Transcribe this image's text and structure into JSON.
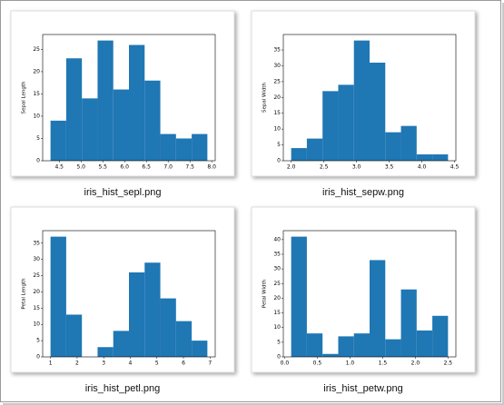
{
  "captions": [
    "iris_hist_sepl.png",
    "iris_hist_sepw.png",
    "iris_hist_petl.png",
    "iris_hist_petw.png"
  ],
  "chart_data": [
    {
      "type": "histogram",
      "ylabel": "Sepal Length",
      "color": "#1f77b4",
      "bins": [
        4.3,
        4.66,
        5.02,
        5.38,
        5.74,
        6.1,
        6.46,
        6.82,
        7.18,
        7.54,
        7.9
      ],
      "values": [
        9,
        23,
        14,
        27,
        16,
        26,
        18,
        6,
        5,
        6
      ],
      "xlim": [
        4.12,
        8.08
      ],
      "ylim": [
        0,
        28.35
      ],
      "xticks": [
        4.5,
        {
          "value": 5,
          "label": "5.0"
        },
        5.5,
        {
          "value": 6,
          "label": "6.0"
        },
        6.5,
        {
          "value": 7,
          "label": "7.0"
        },
        7.5,
        {
          "value": 8,
          "label": "8.0"
        }
      ],
      "yticks": [
        0,
        5,
        10,
        15,
        20,
        25
      ]
    },
    {
      "type": "histogram",
      "ylabel": "Sepal Width",
      "color": "#1f77b4",
      "bins": [
        2.0,
        2.24,
        2.48,
        2.72,
        2.96,
        3.2,
        3.44,
        3.68,
        3.92,
        4.16,
        4.4
      ],
      "values": [
        4,
        7,
        22,
        24,
        38,
        31,
        9,
        11,
        2,
        2
      ],
      "xlim": [
        1.88,
        4.52
      ],
      "ylim": [
        0,
        39.9
      ],
      "xticks": [
        {
          "value": 2,
          "label": "2.0"
        },
        2.5,
        {
          "value": 3,
          "label": "3.0"
        },
        3.5,
        {
          "value": 4,
          "label": "4.0"
        },
        4.5
      ],
      "yticks": [
        0,
        5,
        10,
        15,
        20,
        25,
        30,
        35
      ]
    },
    {
      "type": "histogram",
      "ylabel": "Petal Length",
      "color": "#1f77b4",
      "bins": [
        1.0,
        1.59,
        2.18,
        2.77,
        3.36,
        3.95,
        4.54,
        5.13,
        5.72,
        6.31,
        6.9
      ],
      "values": [
        37,
        13,
        0,
        3,
        8,
        26,
        29,
        18,
        11,
        5
      ],
      "xlim": [
        0.705,
        7.195
      ],
      "ylim": [
        0,
        38.85
      ],
      "xticks": [
        1,
        2,
        3,
        4,
        5,
        6,
        7
      ],
      "yticks": [
        0,
        5,
        10,
        15,
        20,
        25,
        30,
        35
      ]
    },
    {
      "type": "histogram",
      "ylabel": "Petal Width",
      "color": "#1f77b4",
      "bins": [
        0.1,
        0.34,
        0.58,
        0.82,
        1.06,
        1.3,
        1.54,
        1.78,
        2.02,
        2.26,
        2.5
      ],
      "values": [
        41,
        8,
        1,
        7,
        8,
        33,
        6,
        23,
        9,
        14
      ],
      "xlim": [
        -0.02,
        2.62
      ],
      "ylim": [
        0,
        43.05
      ],
      "xticks": [
        {
          "value": 0,
          "label": "0.0"
        },
        0.5,
        {
          "value": 1,
          "label": "1.0"
        },
        1.5,
        {
          "value": 2,
          "label": "2.0"
        },
        2.5
      ],
      "yticks": [
        0,
        5,
        10,
        15,
        20,
        25,
        30,
        35,
        40
      ]
    }
  ]
}
